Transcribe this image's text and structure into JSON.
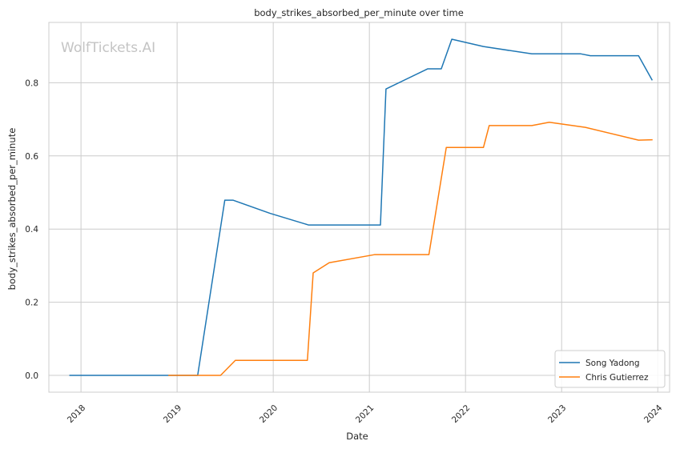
{
  "chart_data": {
    "type": "line",
    "title": "body_strikes_absorbed_per_minute over time",
    "xlabel": "Date",
    "ylabel": "body_strikes_absorbed_per_minute",
    "watermark": "WolfTickets.AI",
    "x_ticks": [
      "2018",
      "2019",
      "2020",
      "2021",
      "2022",
      "2023",
      "2024"
    ],
    "y_ticks": [
      "0.0",
      "0.2",
      "0.4",
      "0.6",
      "0.8"
    ],
    "xlim": [
      "2017-09-01",
      "2024-02-15"
    ],
    "ylim": [
      -0.046,
      0.965
    ],
    "grid": true,
    "legend_position": "bottom-right",
    "series": [
      {
        "name": "Song Yadong",
        "color": "#1f77b4",
        "points": [
          [
            "2017-11-20",
            0.0
          ],
          [
            "2019-03-20",
            0.0
          ],
          [
            "2019-07-01",
            0.479
          ],
          [
            "2019-08-01",
            0.479
          ],
          [
            "2019-12-20",
            0.443
          ],
          [
            "2020-05-15",
            0.411
          ],
          [
            "2021-02-12",
            0.411
          ],
          [
            "2021-03-05",
            0.783
          ],
          [
            "2021-08-10",
            0.838
          ],
          [
            "2021-10-01",
            0.838
          ],
          [
            "2021-11-10",
            0.919
          ],
          [
            "2022-03-10",
            0.899
          ],
          [
            "2022-09-10",
            0.879
          ],
          [
            "2023-03-15",
            0.879
          ],
          [
            "2023-04-20",
            0.874
          ],
          [
            "2023-10-20",
            0.874
          ],
          [
            "2023-12-10",
            0.808
          ]
        ]
      },
      {
        "name": "Chris Gutierrez",
        "color": "#ff7f0e",
        "points": [
          [
            "2018-12-01",
            0.0
          ],
          [
            "2019-06-15",
            0.0
          ],
          [
            "2019-08-10",
            0.041
          ],
          [
            "2020-05-10",
            0.041
          ],
          [
            "2020-06-01",
            0.28
          ],
          [
            "2020-08-01",
            0.308
          ],
          [
            "2021-01-20",
            0.33
          ],
          [
            "2021-08-15",
            0.33
          ],
          [
            "2021-10-20",
            0.623
          ],
          [
            "2022-03-10",
            0.623
          ],
          [
            "2022-04-01",
            0.683
          ],
          [
            "2022-09-10",
            0.683
          ],
          [
            "2022-11-15",
            0.692
          ],
          [
            "2023-04-01",
            0.678
          ],
          [
            "2023-10-20",
            0.643
          ],
          [
            "2023-12-10",
            0.644
          ]
        ]
      }
    ]
  }
}
